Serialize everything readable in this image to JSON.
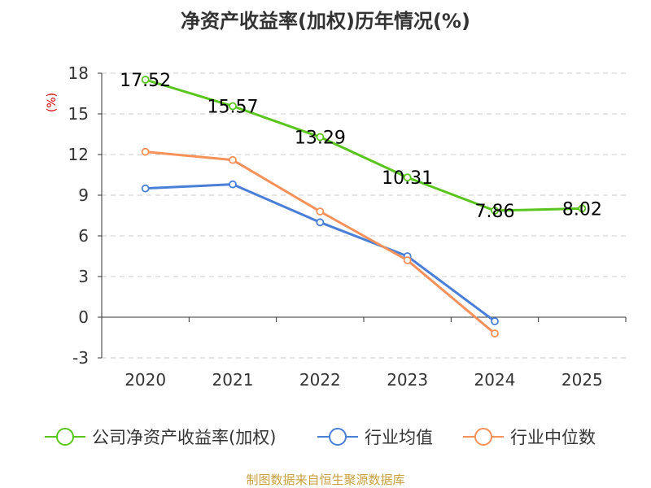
{
  "chart_data": {
    "type": "line",
    "title": "净资产收益率(加权)历年情况(%)",
    "xlabel": "",
    "ylabel": "(%)",
    "categories": [
      "2020",
      "2021",
      "2022",
      "2023",
      "2024",
      "2025"
    ],
    "ylim": [
      -3,
      18
    ],
    "yticks": [
      18,
      15,
      12,
      9,
      6,
      3,
      0,
      -3
    ],
    "ytick_labels": [
      "18",
      "15",
      "12",
      "9",
      "6",
      "3",
      "0",
      "-3"
    ],
    "grid": true,
    "legend_position": "bottom",
    "series": [
      {
        "name": "公司净资产收益率(加权)",
        "color": "#5ac51e",
        "values": [
          17.52,
          15.57,
          13.29,
          10.31,
          7.86,
          8.02
        ],
        "labels": [
          "17.52",
          "15.57",
          "13.29",
          "10.31",
          "7.86",
          "8.02"
        ],
        "show_labels": true
      },
      {
        "name": "行业均值",
        "color": "#4a7fd8",
        "values": [
          9.5,
          9.8,
          7.0,
          4.5,
          -0.3,
          null
        ],
        "show_labels": false
      },
      {
        "name": "行业中位数",
        "color": "#f7915a",
        "values": [
          12.2,
          11.6,
          7.8,
          4.2,
          -1.2,
          null
        ],
        "show_labels": false
      }
    ]
  },
  "source": "制图数据来自恒生聚源数据库"
}
